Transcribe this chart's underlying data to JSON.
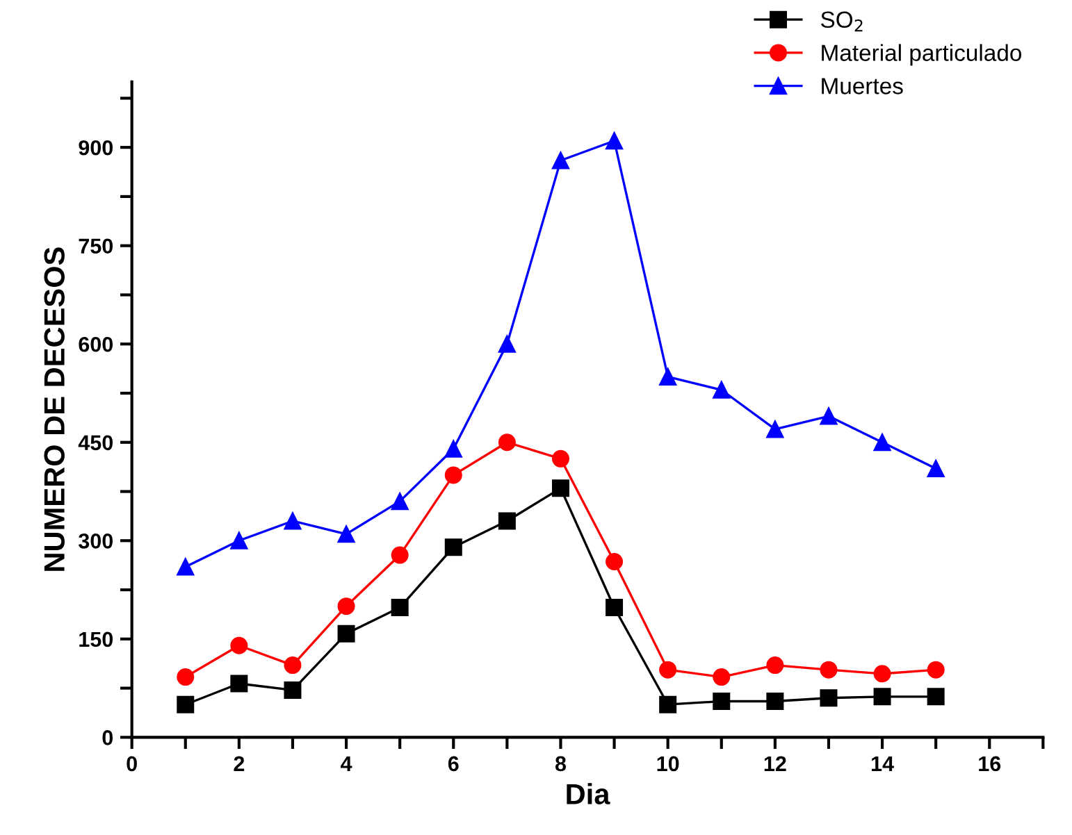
{
  "chart_data": {
    "type": "line",
    "xlabel": "Dia",
    "ylabel": "NUMERO DE DECESOS",
    "x": [
      1,
      2,
      3,
      4,
      5,
      6,
      7,
      8,
      9,
      10,
      11,
      12,
      13,
      14,
      15
    ],
    "series": [
      {
        "name": "SO$_{2}$",
        "color": "#000000",
        "marker": "square",
        "values": [
          50,
          82,
          72,
          158,
          198,
          290,
          330,
          380,
          198,
          50,
          55,
          55,
          60,
          62,
          62
        ]
      },
      {
        "name": "Material particulado",
        "color": "#ff0000",
        "marker": "circle",
        "values": [
          92,
          140,
          110,
          200,
          278,
          400,
          450,
          425,
          268,
          103,
          92,
          110,
          103,
          97,
          103
        ]
      },
      {
        "name": "Muertes",
        "color": "#0000ff",
        "marker": "triangle",
        "values": [
          260,
          300,
          330,
          310,
          360,
          440,
          600,
          880,
          910,
          550,
          530,
          470,
          490,
          450,
          410
        ]
      }
    ],
    "xlim": [
      0,
      17
    ],
    "ylim": [
      0,
      1000
    ],
    "xticks": [
      0,
      {
        "value": 1,
        "label": null
      },
      2,
      {
        "value": 3,
        "label": null
      },
      4,
      {
        "value": 5,
        "label": null
      },
      6,
      {
        "value": 7,
        "label": null
      },
      8,
      {
        "value": 9,
        "label": null
      },
      10,
      {
        "value": 11,
        "label": null
      },
      12,
      {
        "value": 13,
        "label": null
      },
      14,
      {
        "value": 15,
        "label": null
      },
      16,
      {
        "value": 17,
        "label": null
      }
    ],
    "yticks": [
      0,
      {
        "value": 75,
        "label": null
      },
      150,
      {
        "value": 225,
        "label": null
      },
      300,
      {
        "value": 375,
        "label": null
      },
      450,
      {
        "value": 525,
        "label": null
      },
      600,
      {
        "value": 675,
        "label": null
      },
      750,
      {
        "value": 825,
        "label": null
      },
      900,
      {
        "value": 975,
        "label": null
      }
    ],
    "legend": "top right",
    "grid": false,
    "line_style": "solid"
  }
}
